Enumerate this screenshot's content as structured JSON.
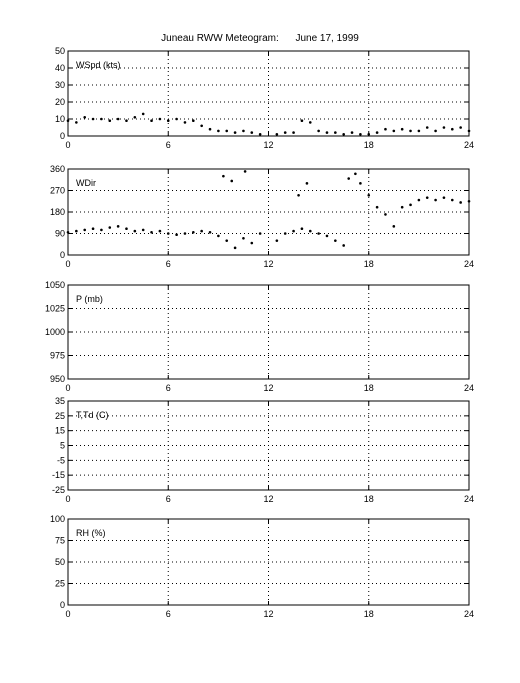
{
  "title": "Juneau RWW Meteogram:      June 17, 1999",
  "chart_data": [
    {
      "type": "scatter",
      "label": "WSpd (kts)",
      "xlim": [
        0,
        24
      ],
      "ylim": [
        0,
        50
      ],
      "xticks": [
        0,
        6,
        12,
        18,
        24
      ],
      "yticks": [
        0,
        10,
        20,
        30,
        40,
        50
      ],
      "grid": true,
      "points": [
        [
          0.0,
          9
        ],
        [
          0.5,
          8
        ],
        [
          1.0,
          11
        ],
        [
          1.5,
          10
        ],
        [
          2.0,
          10
        ],
        [
          2.5,
          9
        ],
        [
          3.0,
          10
        ],
        [
          3.5,
          9
        ],
        [
          4.0,
          11
        ],
        [
          4.5,
          13
        ],
        [
          5.0,
          9
        ],
        [
          5.5,
          10
        ],
        [
          6.0,
          9
        ],
        [
          6.5,
          10
        ],
        [
          7.0,
          8
        ],
        [
          7.5,
          9
        ],
        [
          8.0,
          6
        ],
        [
          8.5,
          4
        ],
        [
          9.0,
          3
        ],
        [
          9.5,
          3
        ],
        [
          10.0,
          2
        ],
        [
          10.5,
          3
        ],
        [
          11.0,
          2
        ],
        [
          11.5,
          1
        ],
        [
          12.5,
          1
        ],
        [
          13.0,
          2
        ],
        [
          13.5,
          2
        ],
        [
          14.0,
          9
        ],
        [
          14.5,
          8
        ],
        [
          15.0,
          3
        ],
        [
          15.5,
          2
        ],
        [
          16.0,
          2
        ],
        [
          16.5,
          1
        ],
        [
          17.0,
          2
        ],
        [
          17.5,
          1
        ],
        [
          18.0,
          1
        ],
        [
          18.5,
          2
        ],
        [
          19.0,
          4
        ],
        [
          19.5,
          3
        ],
        [
          20.0,
          4
        ],
        [
          20.5,
          3
        ],
        [
          21.0,
          3
        ],
        [
          21.5,
          5
        ],
        [
          22.0,
          3
        ],
        [
          22.5,
          5
        ],
        [
          23.0,
          4
        ],
        [
          23.5,
          5
        ],
        [
          24.0,
          3
        ]
      ]
    },
    {
      "type": "scatter",
      "label": "WDir",
      "xlim": [
        0,
        24
      ],
      "ylim": [
        0,
        360
      ],
      "xticks": [
        0,
        6,
        12,
        18,
        24
      ],
      "yticks": [
        0,
        90,
        180,
        270,
        360
      ],
      "grid": true,
      "points": [
        [
          0.0,
          95
        ],
        [
          0.5,
          100
        ],
        [
          1.0,
          105
        ],
        [
          1.5,
          110
        ],
        [
          2.0,
          105
        ],
        [
          2.5,
          115
        ],
        [
          3.0,
          120
        ],
        [
          3.5,
          110
        ],
        [
          4.0,
          100
        ],
        [
          4.5,
          105
        ],
        [
          5.0,
          95
        ],
        [
          5.5,
          100
        ],
        [
          6.0,
          90
        ],
        [
          6.5,
          85
        ],
        [
          7.0,
          90
        ],
        [
          7.5,
          95
        ],
        [
          8.0,
          100
        ],
        [
          8.5,
          95
        ],
        [
          9.0,
          80
        ],
        [
          9.5,
          60
        ],
        [
          10.0,
          30
        ],
        [
          10.5,
          70
        ],
        [
          11.0,
          50
        ],
        [
          11.5,
          90
        ],
        [
          9.3,
          330
        ],
        [
          9.8,
          310
        ],
        [
          10.6,
          350
        ],
        [
          12.5,
          60
        ],
        [
          13.0,
          90
        ],
        [
          13.5,
          100
        ],
        [
          14.0,
          110
        ],
        [
          14.5,
          100
        ],
        [
          15.0,
          90
        ],
        [
          15.5,
          80
        ],
        [
          16.0,
          60
        ],
        [
          16.5,
          40
        ],
        [
          13.8,
          250
        ],
        [
          14.3,
          300
        ],
        [
          16.8,
          320
        ],
        [
          17.2,
          340
        ],
        [
          17.5,
          300
        ],
        [
          18.0,
          250
        ],
        [
          18.5,
          200
        ],
        [
          19.0,
          170
        ],
        [
          19.5,
          120
        ],
        [
          20.0,
          200
        ],
        [
          20.5,
          210
        ],
        [
          21.0,
          230
        ],
        [
          21.5,
          240
        ],
        [
          22.0,
          230
        ],
        [
          22.5,
          240
        ],
        [
          23.0,
          230
        ],
        [
          23.5,
          220
        ],
        [
          24.0,
          225
        ]
      ]
    },
    {
      "type": "scatter",
      "label": "P (mb)",
      "xlim": [
        0,
        24
      ],
      "ylim": [
        950,
        1050
      ],
      "xticks": [
        0,
        6,
        12,
        18,
        24
      ],
      "yticks": [
        950,
        975,
        1000,
        1025,
        1050
      ],
      "grid": true,
      "points": []
    },
    {
      "type": "scatter",
      "label": "T,Td (C)",
      "xlim": [
        0,
        24
      ],
      "ylim": [
        -25,
        35
      ],
      "xticks": [
        0,
        6,
        12,
        18,
        24
      ],
      "yticks": [
        -25,
        -15,
        -5,
        5,
        15,
        25,
        35
      ],
      "grid": true,
      "points": []
    },
    {
      "type": "scatter",
      "label": "RH (%)",
      "xlim": [
        0,
        24
      ],
      "ylim": [
        0,
        100
      ],
      "xticks": [
        0,
        6,
        12,
        18,
        24
      ],
      "yticks": [
        0,
        25,
        50,
        75,
        100
      ],
      "grid": true,
      "points": []
    }
  ]
}
